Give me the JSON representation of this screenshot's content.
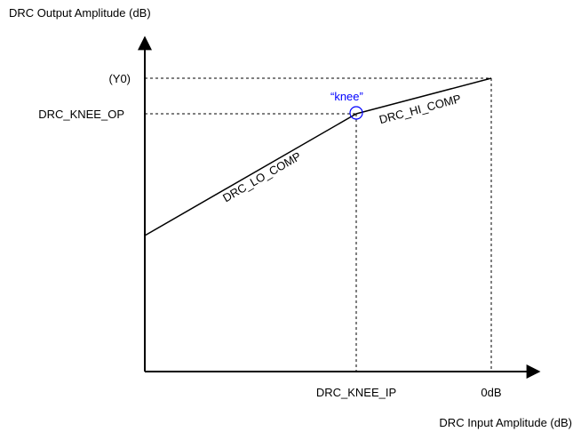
{
  "diagram": {
    "y_axis_title": "DRC Output Amplitude (dB)",
    "x_axis_title": "DRC Input Amplitude (dB)",
    "y_labels": {
      "y0": "(Y0)",
      "knee_op": "DRC_KNEE_OP"
    },
    "x_labels": {
      "knee_ip": "DRC_KNEE_IP",
      "zero_db": "0dB"
    },
    "segments": {
      "lo_comp": "DRC_LO_COMP",
      "hi_comp": "DRC_HI_COMP"
    },
    "knee_label": "“knee”",
    "colors": {
      "ink": "#000000",
      "knee": "#0000ff"
    }
  }
}
